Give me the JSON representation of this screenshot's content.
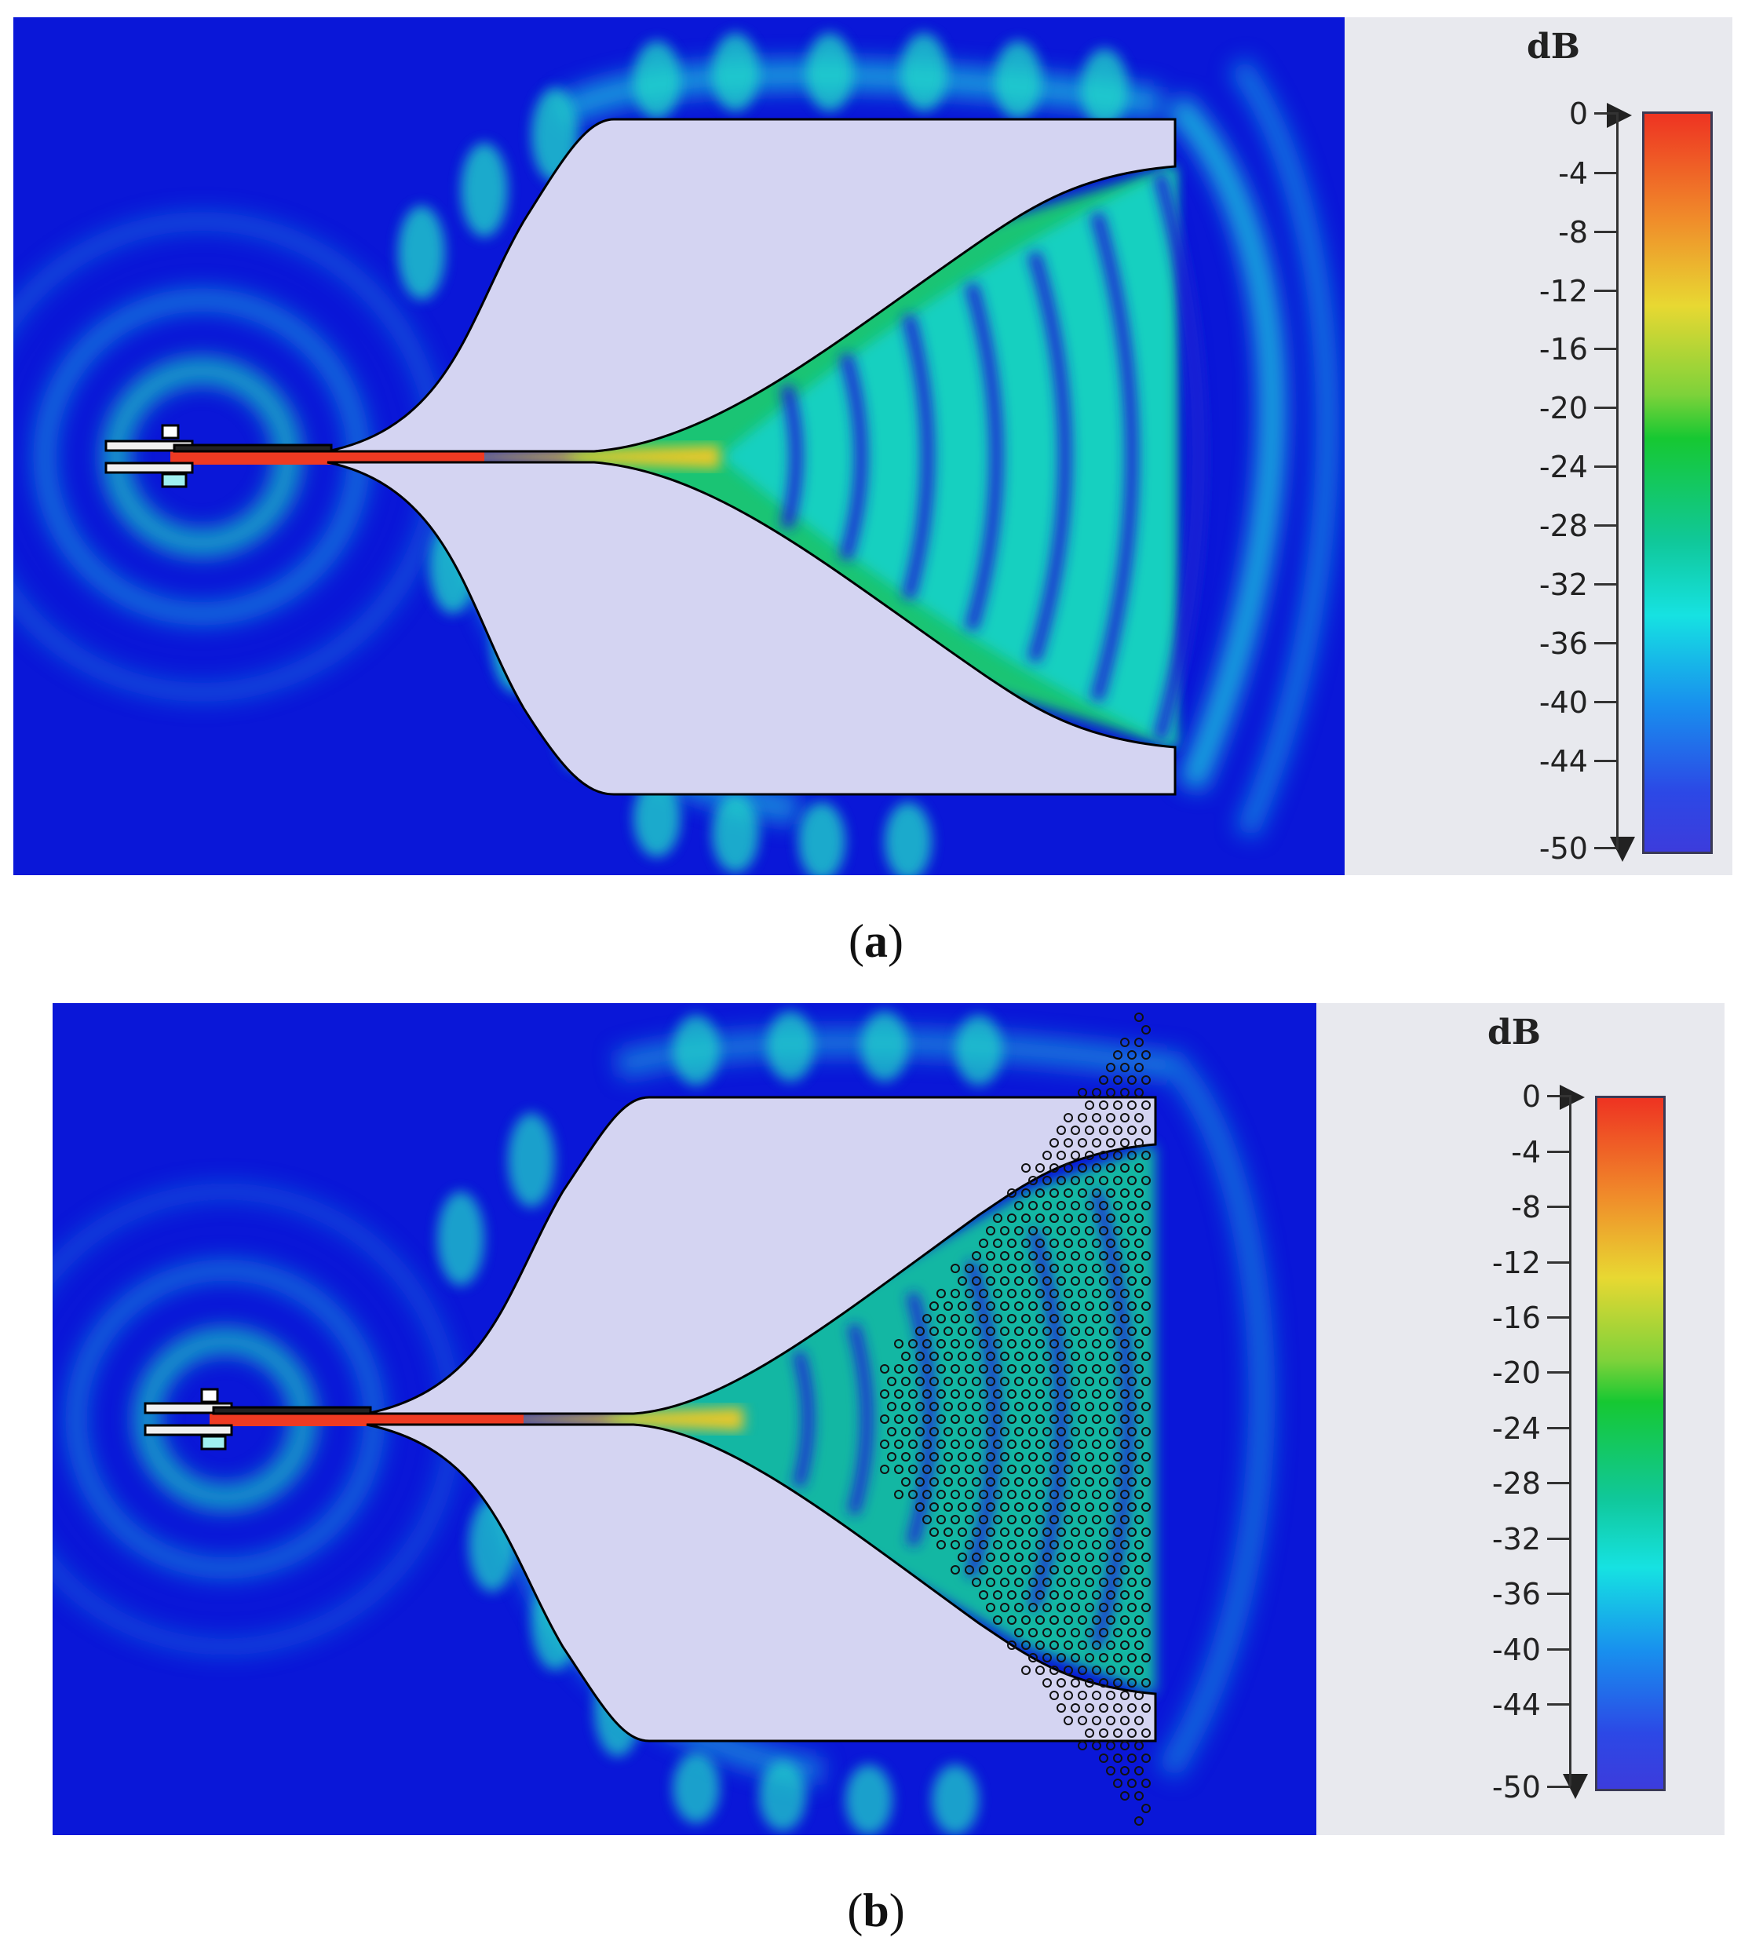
{
  "figure_a": {
    "caption_open": "(",
    "caption_letter": "a",
    "caption_close": ")",
    "legend": {
      "unit": "dB",
      "ticks": [
        "0",
        "-4",
        "-8",
        "-12",
        "-16",
        "-20",
        "-24",
        "-28",
        "-32",
        "-36",
        "-40",
        "-44",
        "-50"
      ]
    }
  },
  "figure_b": {
    "caption_open": "(",
    "caption_letter": "b",
    "caption_close": ")",
    "legend": {
      "unit": "dB",
      "ticks": [
        "0",
        "-4",
        "-8",
        "-12",
        "-16",
        "-20",
        "-24",
        "-28",
        "-32",
        "-36",
        "-40",
        "-44",
        "-50"
      ]
    }
  },
  "colors": {
    "background_field": "#0a17d8",
    "antenna_fill": "#d4d4f2",
    "legend_bg": "#e8e9ee",
    "scale_max": "#ee3322",
    "scale_mid": "#16c832",
    "scale_min": "#3c3cdc"
  }
}
